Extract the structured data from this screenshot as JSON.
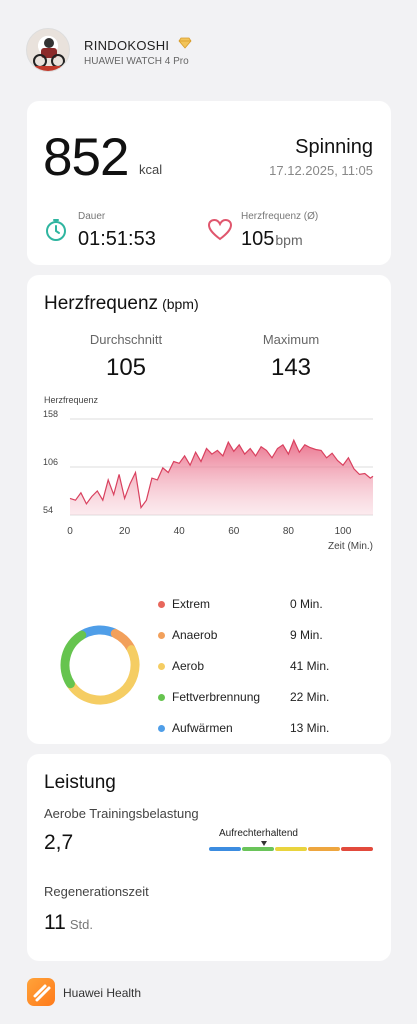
{
  "header": {
    "username": "RINDOKOSHI",
    "device": "HUAWEI WATCH 4 Pro",
    "badge_icon": "diamond-icon"
  },
  "summary": {
    "kcal": "852",
    "kcal_unit": "kcal",
    "activity": "Spinning",
    "datetime": "17.12.2025, 11:05",
    "duration_label": "Dauer",
    "duration_value": "01:51:53",
    "hr_label": "Herzfrequenz (Ø)",
    "hr_value": "105",
    "hr_unit": "bpm"
  },
  "heart_rate": {
    "title": "Herzfrequenz",
    "title_unit": "(bpm)",
    "avg_label": "Durchschnitt",
    "avg_value": "105",
    "max_label": "Maximum",
    "max_value": "143",
    "chart_ylabel": "Herzfrequenz",
    "chart_xlabel": "Zeit (Min.)",
    "zones": [
      {
        "label": "Extrem",
        "value": "0 Min.",
        "color": "#e8675c"
      },
      {
        "label": "Anaerob",
        "value": "9 Min.",
        "color": "#f2a05b"
      },
      {
        "label": "Aerob",
        "value": "41 Min.",
        "color": "#f5cd63"
      },
      {
        "label": "Fettverbrennung",
        "value": "22 Min.",
        "color": "#66c44f"
      },
      {
        "label": "Aufwärmen",
        "value": "13 Min.",
        "color": "#4f9ee8"
      }
    ]
  },
  "chart_data": {
    "type": "area",
    "ylabel": "Herzfrequenz",
    "xlabel": "Zeit (Min.)",
    "xlim": [
      0,
      111
    ],
    "ylim": [
      54,
      158
    ],
    "yticks": [
      54,
      106,
      158
    ],
    "xticks": [
      0,
      20,
      40,
      60,
      80,
      100
    ],
    "color": "#e15a78",
    "x": [
      0,
      2,
      4,
      6,
      8,
      10,
      12,
      14,
      16,
      18,
      20,
      22,
      24,
      26,
      28,
      30,
      32,
      34,
      36,
      38,
      40,
      42,
      44,
      46,
      48,
      50,
      52,
      54,
      56,
      58,
      60,
      62,
      64,
      66,
      68,
      70,
      72,
      74,
      76,
      78,
      80,
      82,
      84,
      86,
      88,
      90,
      92,
      94,
      96,
      98,
      100,
      102,
      104,
      106,
      108,
      110,
      111
    ],
    "values": [
      72,
      70,
      78,
      66,
      74,
      80,
      70,
      92,
      76,
      98,
      72,
      88,
      100,
      62,
      70,
      94,
      92,
      105,
      100,
      112,
      110,
      118,
      108,
      122,
      112,
      126,
      120,
      124,
      118,
      133,
      123,
      130,
      120,
      126,
      118,
      128,
      124,
      116,
      126,
      130,
      120,
      135,
      122,
      130,
      127,
      125,
      124,
      116,
      121,
      113,
      108,
      116,
      104,
      98,
      99,
      94,
      96
    ]
  },
  "performance": {
    "title": "Leistung",
    "load_label": "Aerobe Trainingsbelastung",
    "load_value": "2,7",
    "load_level": "Aufrechterhaltend",
    "load_colors": [
      "#3c8ce0",
      "#6ac45a",
      "#e9d43e",
      "#eea63f",
      "#e24a3c"
    ],
    "regen_label": "Regenerationszeit",
    "regen_value": "11",
    "regen_unit": "Std."
  },
  "footer": {
    "app_name": "Huawei Health"
  }
}
